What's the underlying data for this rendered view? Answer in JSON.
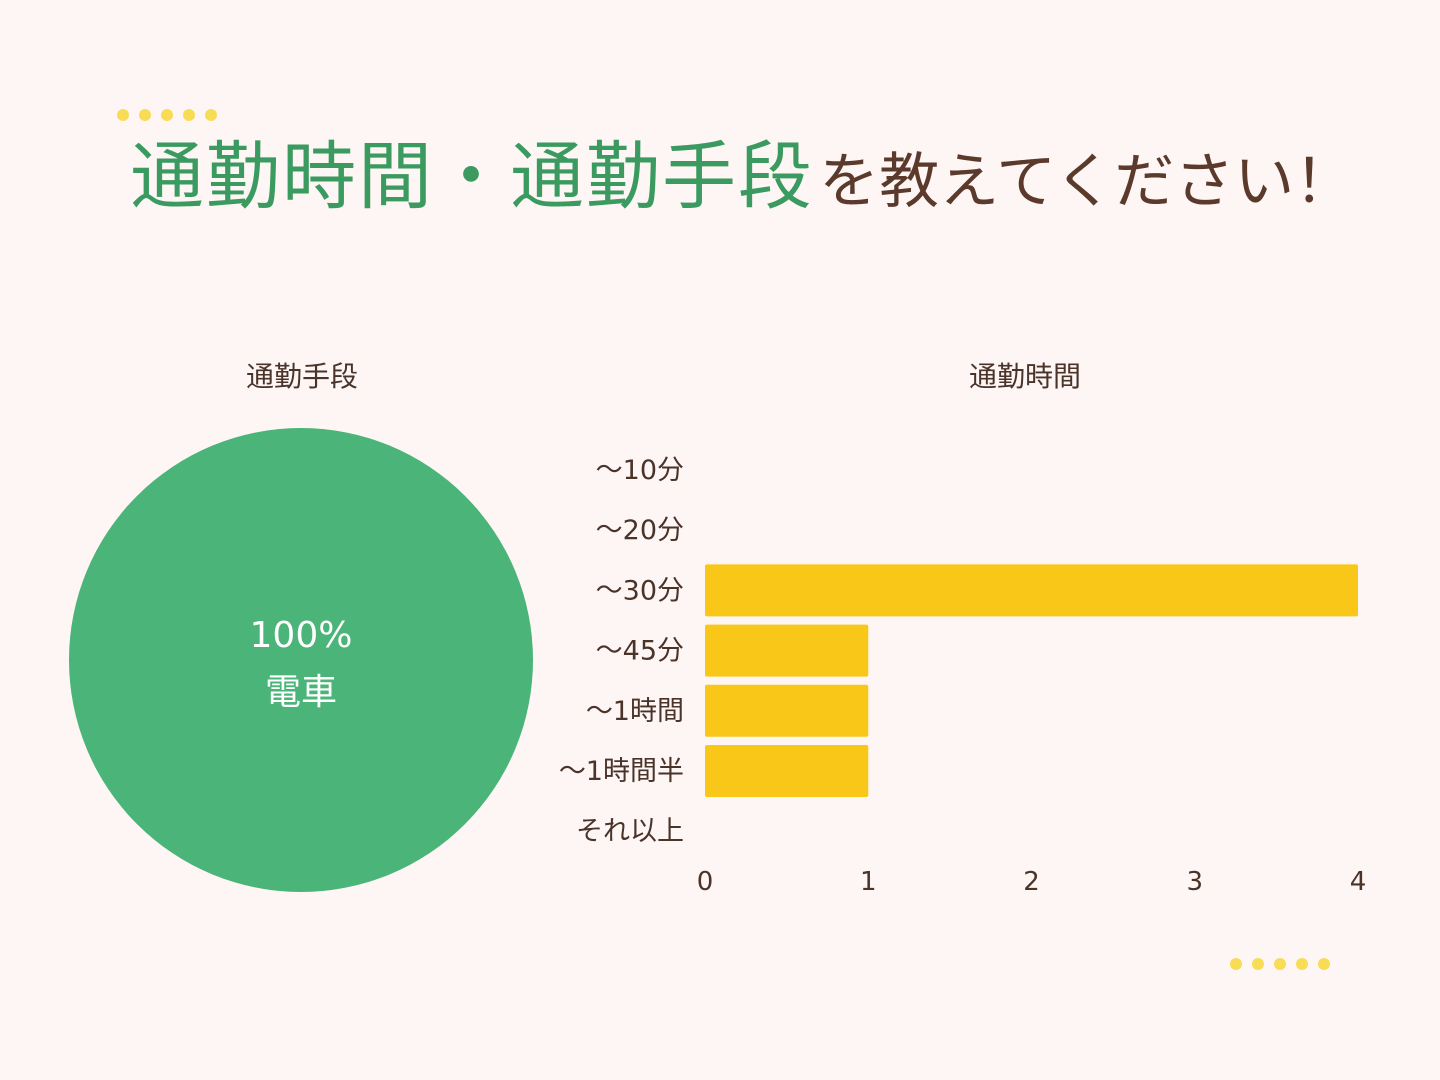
{
  "headline": {
    "part1": "通勤時間・通勤手段",
    "part2": "を教えてください！"
  },
  "colors": {
    "background": "#fdf6f5",
    "green": "#4bb478",
    "yellow": "#f8c717",
    "dots": "#f9dc56",
    "text": "#4a3329",
    "headline_green": "#3a9a5f"
  },
  "chart_data": [
    {
      "type": "pie",
      "title": "通勤手段",
      "categories": [
        "電車"
      ],
      "values": [
        100
      ],
      "labels": [
        {
          "percent": "100%",
          "name": "電車"
        }
      ]
    },
    {
      "type": "bar",
      "orientation": "horizontal",
      "title": "通勤時間",
      "categories": [
        "〜10分",
        "〜20分",
        "〜30分",
        "〜45分",
        "〜1時間",
        "〜1時間半",
        "それ以上"
      ],
      "values": [
        0,
        0,
        4,
        1,
        1,
        1,
        0
      ],
      "xticks": [
        "0",
        "1",
        "2",
        "3",
        "4"
      ],
      "xlim": [
        0,
        4
      ],
      "grid": false
    }
  ]
}
